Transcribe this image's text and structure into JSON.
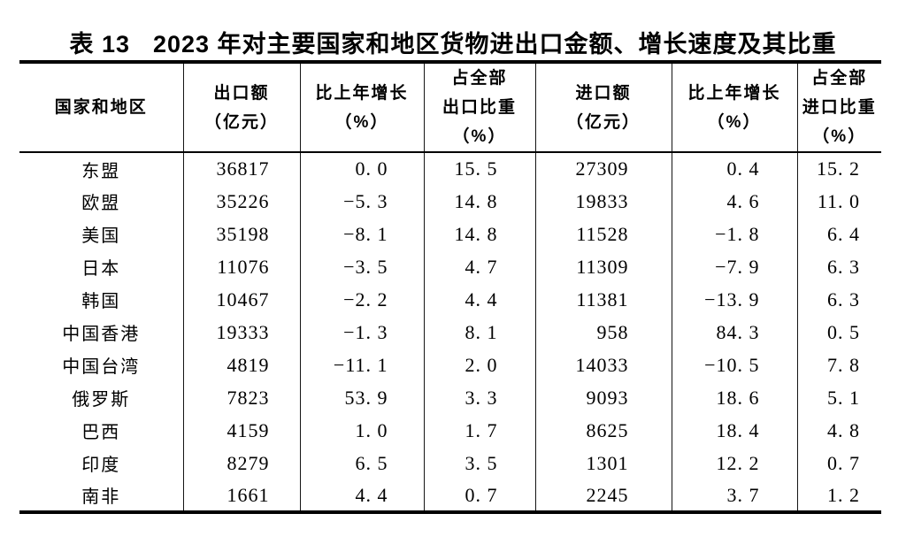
{
  "title": {
    "label": "表 13",
    "text": "2023 年对主要国家和地区货物进出口金额、增长速度及其比重"
  },
  "table": {
    "header_lines": [
      [
        "国家和地区"
      ],
      [
        "出口额",
        "（亿元）"
      ],
      [
        "比上年增长",
        "（%）"
      ],
      [
        "占全部",
        "出口比重",
        "（%）"
      ],
      [
        "进口额",
        "（亿元）"
      ],
      [
        "比上年增长",
        "（%）"
      ],
      [
        "占全部",
        "进口比重",
        "（%）"
      ]
    ]
  },
  "chart_data": {
    "type": "table",
    "title": "表13 2023年对主要国家和地区货物进出口金额、增长速度及其比重",
    "columns": [
      "国家和地区",
      "出口额（亿元）",
      "比上年增长（%）",
      "占全部出口比重（%）",
      "进口额（亿元）",
      "比上年增长（%）",
      "占全部进口比重（%）"
    ],
    "rows": [
      [
        "东盟",
        "36817",
        "0.0",
        "15.5",
        "27309",
        "0.4",
        "15.2"
      ],
      [
        "欧盟",
        "35226",
        "-5.3",
        "14.8",
        "19833",
        "4.6",
        "11.0"
      ],
      [
        "美国",
        "35198",
        "-8.1",
        "14.8",
        "11528",
        "-1.8",
        "6.4"
      ],
      [
        "日本",
        "11076",
        "-3.5",
        "4.7",
        "11309",
        "-7.9",
        "6.3"
      ],
      [
        "韩国",
        "10467",
        "-2.2",
        "4.4",
        "11381",
        "-13.9",
        "6.3"
      ],
      [
        "中国香港",
        "19333",
        "-1.3",
        "8.1",
        "958",
        "84.3",
        "0.5"
      ],
      [
        "中国台湾",
        "4819",
        "-11.1",
        "2.0",
        "14033",
        "-10.5",
        "7.8"
      ],
      [
        "俄罗斯",
        "7823",
        "53.9",
        "3.3",
        "9093",
        "18.6",
        "5.1"
      ],
      [
        "巴西",
        "4159",
        "1.0",
        "1.7",
        "8625",
        "18.4",
        "4.8"
      ],
      [
        "印度",
        "8279",
        "6.5",
        "3.5",
        "1301",
        "12.2",
        "0.7"
      ],
      [
        "南非",
        "1661",
        "4.4",
        "0.7",
        "2245",
        "3.7",
        "1.2"
      ]
    ]
  },
  "colors": {
    "background": "#ffffff",
    "text": "#000000",
    "rule": "#000000"
  }
}
